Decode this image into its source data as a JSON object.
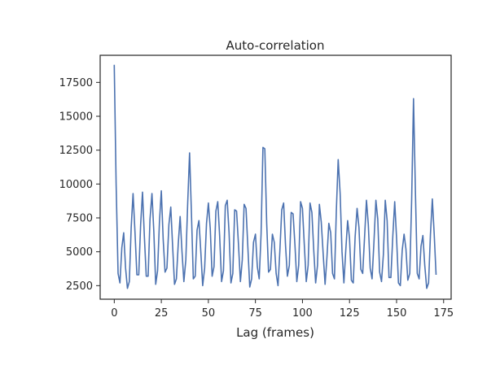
{
  "chart_data": {
    "type": "line",
    "title": "Auto-correlation",
    "xlabel": "Lag (frames)",
    "ylabel": "",
    "xlim": [
      -7.5,
      179
    ],
    "ylim": [
      1500,
      19500
    ],
    "xticks": [
      0,
      25,
      50,
      75,
      100,
      125,
      150,
      175
    ],
    "yticks": [
      2500,
      5000,
      7500,
      10000,
      12500,
      15000,
      17500
    ],
    "grid": false,
    "series": [
      {
        "color": "#4c72b0",
        "x": [
          0,
          1,
          2,
          3,
          4,
          5,
          6,
          7,
          8,
          9,
          10,
          11,
          12,
          13,
          14,
          15,
          16,
          17,
          18,
          19,
          20,
          21,
          22,
          23,
          24,
          25,
          26,
          27,
          28,
          29,
          30,
          31,
          32,
          33,
          34,
          35,
          36,
          37,
          38,
          39,
          40,
          41,
          42,
          43,
          44,
          45,
          46,
          47,
          48,
          49,
          50,
          51,
          52,
          53,
          54,
          55,
          56,
          57,
          58,
          59,
          60,
          61,
          62,
          63,
          64,
          65,
          66,
          67,
          68,
          69,
          70,
          71,
          72,
          73,
          74,
          75,
          76,
          77,
          78,
          79,
          80,
          81,
          82,
          83,
          84,
          85,
          86,
          87,
          88,
          89,
          90,
          91,
          92,
          93,
          94,
          95,
          96,
          97,
          98,
          99,
          100,
          101,
          102,
          103,
          104,
          105,
          106,
          107,
          108,
          109,
          110,
          111,
          112,
          113,
          114,
          115,
          116,
          117,
          118,
          119,
          120,
          121,
          122,
          123,
          124,
          125,
          126,
          127,
          128,
          129,
          130,
          131,
          132,
          133,
          134,
          135,
          136,
          137,
          138,
          139,
          140,
          141,
          142,
          143,
          144,
          145,
          146,
          147,
          148,
          149,
          150,
          151,
          152,
          153,
          154,
          155,
          156,
          157,
          158,
          159,
          160,
          161,
          162,
          163,
          164,
          165,
          166,
          167,
          168,
          169,
          170,
          171
        ],
        "y": [
          18800,
          10000,
          3400,
          2700,
          5300,
          6400,
          3800,
          2300,
          2800,
          6800,
          9300,
          6400,
          3300,
          3300,
          7000,
          9400,
          6100,
          3200,
          3200,
          7400,
          9300,
          6500,
          2600,
          3600,
          7200,
          9500,
          5900,
          3500,
          3800,
          7000,
          8300,
          5400,
          2600,
          3000,
          5600,
          7600,
          5000,
          2800,
          4400,
          8600,
          12300,
          7800,
          3000,
          3200,
          6600,
          7300,
          5000,
          2500,
          3800,
          7100,
          8600,
          6700,
          3200,
          3900,
          8000,
          8700,
          6200,
          2800,
          3600,
          8400,
          8800,
          6400,
          2700,
          3400,
          8100,
          8000,
          5500,
          2800,
          4400,
          8500,
          8200,
          5300,
          2400,
          3000,
          5700,
          6300,
          3900,
          3000,
          6300,
          12700,
          12600,
          7100,
          3500,
          3700,
          6300,
          5700,
          3400,
          2500,
          5100,
          8100,
          8600,
          5500,
          3200,
          4000,
          7900,
          7800,
          5500,
          2800,
          4000,
          8700,
          8200,
          5500,
          2800,
          4000,
          8600,
          7900,
          5100,
          2700,
          4000,
          8500,
          7200,
          4800,
          2600,
          4600,
          7100,
          6400,
          3400,
          3000,
          8000,
          11800,
          9300,
          5000,
          2700,
          5100,
          7300,
          6000,
          2900,
          2700,
          6100,
          8200,
          6800,
          3700,
          3400,
          6100,
          8800,
          7000,
          3800,
          3000,
          5700,
          8800,
          7400,
          3500,
          2800,
          4800,
          8800,
          7300,
          3100,
          3100,
          6200,
          8700,
          6000,
          2700,
          2500,
          5100,
          6300,
          5200,
          2900,
          3400,
          8800,
          16300,
          9500,
          3400,
          3000,
          5400,
          6200,
          4000,
          2300,
          2700,
          6300,
          8900,
          6300,
          3300
        ]
      }
    ]
  }
}
